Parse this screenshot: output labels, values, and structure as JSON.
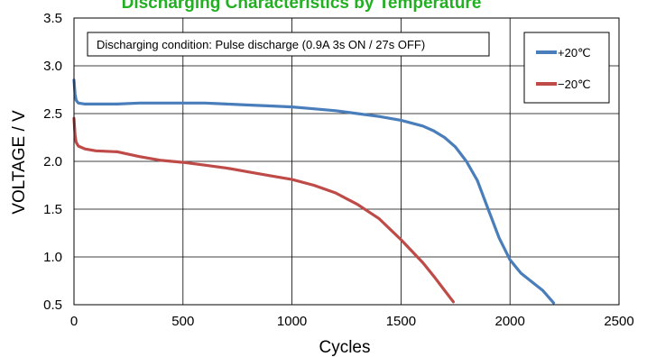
{
  "chart_data": {
    "type": "line",
    "title": "Discharging Characteristics by Temperature",
    "title_color": "#22b022",
    "annotation": "Discharging condition: Pulse discharge (0.9A 3s ON / 27s OFF)",
    "xlabel": "Cycles",
    "ylabel": "VOLTAGE / V",
    "xlim": [
      0,
      2500
    ],
    "ylim": [
      0.5,
      3.5
    ],
    "xticks": [
      0,
      500,
      1000,
      1500,
      2000,
      2500
    ],
    "yticks": [
      0.5,
      1.0,
      1.5,
      2.0,
      2.5,
      3.0,
      3.5
    ],
    "xtick_labels": [
      "0",
      "500",
      "1000",
      "1500",
      "2000",
      "2500"
    ],
    "ytick_labels": [
      "0.5",
      "1.0",
      "1.5",
      "2.0",
      "2.5",
      "3.0",
      "3.5"
    ],
    "grid": true,
    "legend_position": "top-right",
    "series": [
      {
        "name": "+20℃",
        "color": "#4a7ebb",
        "x": [
          0,
          5,
          10,
          20,
          50,
          100,
          200,
          300,
          400,
          500,
          600,
          700,
          800,
          900,
          1000,
          1100,
          1200,
          1300,
          1400,
          1500,
          1600,
          1650,
          1700,
          1750,
          1800,
          1850,
          1900,
          1950,
          2000,
          2050,
          2100,
          2150,
          2200
        ],
        "y": [
          2.85,
          2.7,
          2.64,
          2.61,
          2.6,
          2.6,
          2.6,
          2.61,
          2.61,
          2.61,
          2.61,
          2.6,
          2.59,
          2.58,
          2.57,
          2.55,
          2.53,
          2.5,
          2.47,
          2.43,
          2.37,
          2.32,
          2.25,
          2.15,
          2.0,
          1.8,
          1.5,
          1.2,
          0.97,
          0.83,
          0.74,
          0.65,
          0.52
        ]
      },
      {
        "name": "−20℃",
        "color": "#be4b48",
        "x": [
          0,
          5,
          10,
          20,
          50,
          100,
          200,
          300,
          400,
          500,
          600,
          700,
          800,
          900,
          1000,
          1100,
          1200,
          1300,
          1400,
          1500,
          1600,
          1650,
          1700,
          1740
        ],
        "y": [
          2.45,
          2.27,
          2.2,
          2.16,
          2.13,
          2.11,
          2.1,
          2.05,
          2.01,
          1.99,
          1.96,
          1.93,
          1.89,
          1.85,
          1.81,
          1.75,
          1.67,
          1.55,
          1.4,
          1.18,
          0.94,
          0.8,
          0.65,
          0.53
        ]
      }
    ]
  }
}
